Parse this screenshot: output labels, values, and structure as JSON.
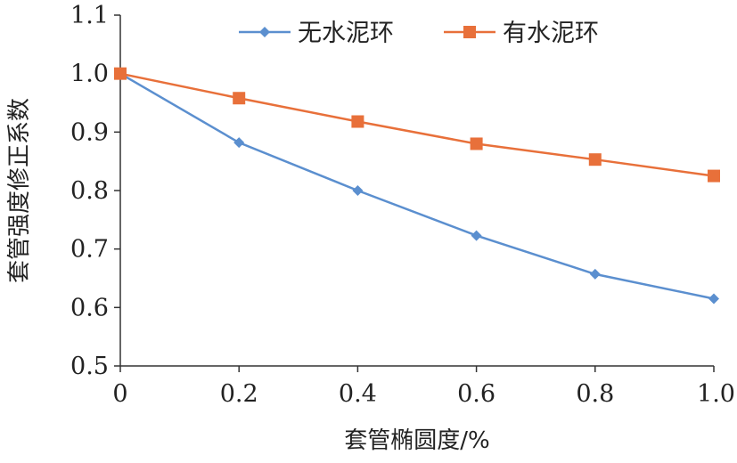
{
  "chart_data": {
    "type": "line",
    "title": "",
    "xlabel": "套管椭圆度/%",
    "ylabel": "套管强度修正系数",
    "x": [
      0,
      0.2,
      0.4,
      0.6,
      0.8,
      1.0
    ],
    "x_tick_labels": [
      "0",
      "0.2",
      "0.4",
      "0.6",
      "0.8",
      "1.0"
    ],
    "y_tick_labels": [
      "0.5",
      "0.6",
      "0.7",
      "0.8",
      "0.9",
      "1.0",
      "1.1"
    ],
    "xlim": [
      0,
      1.0
    ],
    "ylim": [
      0.5,
      1.1
    ],
    "grid": false,
    "legend_position": "top",
    "series": [
      {
        "name": "无水泥环",
        "values": [
          1.0,
          0.882,
          0.8,
          0.723,
          0.657,
          0.615
        ],
        "color": "#5B8FCF",
        "marker": "diamond"
      },
      {
        "name": "有水泥环",
        "values": [
          1.0,
          0.958,
          0.918,
          0.88,
          0.853,
          0.825
        ],
        "color": "#E8703A",
        "marker": "square"
      }
    ]
  }
}
